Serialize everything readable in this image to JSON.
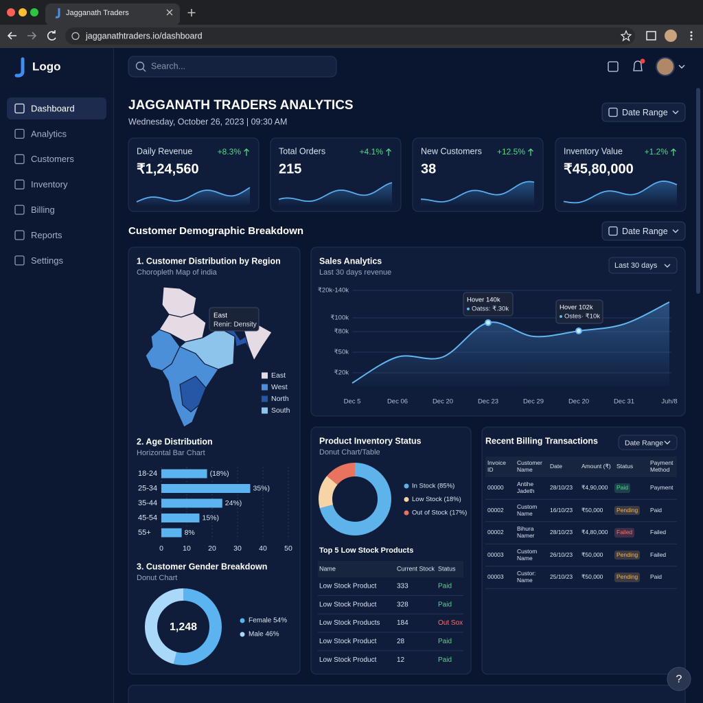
{
  "browser": {
    "tab_title": "Jagganath Traders",
    "url": "jagganathtraders.io/dashboard"
  },
  "sidebar": {
    "logo": "Logo",
    "nav": [
      "Dashboard",
      "Analytics",
      "Customers",
      "Inventory",
      "Billing",
      "Reports",
      "Settings"
    ]
  },
  "topbar": {
    "search_placeholder": "Search..."
  },
  "header": {
    "title": "JAGGANATH TRADERS ANALYTICS",
    "datetime": "Wednesday, October 26, 2023 | 09:30 AM",
    "date_range": "Date Range"
  },
  "kpis": [
    {
      "label": "Daily Revenue",
      "change": "+8.3%",
      "value": "₹1,24,560"
    },
    {
      "label": "Total Orders",
      "change": "+4.1%",
      "value": "215"
    },
    {
      "label": "New Customers",
      "change": "+12.5%",
      "value": "38"
    },
    {
      "label": "Inventory Value",
      "change": "+1.2%",
      "value": "₹45,80,000"
    }
  ],
  "section": {
    "title": "Customer Demographic Breakdown",
    "date_range": "Date Range"
  },
  "region_map": {
    "title": "1. Customer Distribution by Region",
    "subtitle": "Choropleth Map of india",
    "tooltip": [
      "East",
      "Renir: Density"
    ],
    "legend": [
      {
        "name": "East",
        "color": "#e4dbe4"
      },
      {
        "name": "West",
        "color": "#4a8fd8"
      },
      {
        "name": "North",
        "color": "#2656a6"
      },
      {
        "name": "South",
        "color": "#8cc4ec"
      }
    ]
  },
  "chart_data": [
    {
      "type": "line",
      "title": "Sales Analytics",
      "subtitle": "Last 30 days revenue",
      "control": "Last 30 days",
      "categories": [
        "Dec 5",
        "Dec 06",
        "Dec 20",
        "Dec 23",
        "Dec 29",
        "Dec 20",
        "Dec 31",
        "Juh/8"
      ],
      "values": [
        5000,
        43000,
        43000,
        93000,
        73000,
        81000,
        91000,
        123000
      ],
      "color": "#63b6f0",
      "ylim": [
        0,
        150000
      ],
      "yticks": [
        {
          "value": 20000,
          "label": "₹20k"
        },
        {
          "value": 50000,
          "label": "₹50k"
        },
        {
          "value": 80000,
          "label": "₹80k"
        },
        {
          "value": 100000,
          "label": "₹100k"
        },
        {
          "value": 140000,
          "label": "₹20k-140k"
        }
      ],
      "grid": true,
      "annotations": [
        [
          "Hover 140k",
          "Oatss: ₹.30k"
        ],
        [
          "Hover 102k",
          "Ostes· ₹10k"
        ]
      ]
    },
    {
      "type": "bar",
      "orientation": "horizontal",
      "title": "2. Age Distribution",
      "subtitle": "Horizontal Bar Chart",
      "categories": [
        "18-24",
        "25-34",
        "35-44",
        "45-54",
        "55+"
      ],
      "values": [
        18,
        35,
        24,
        15,
        8
      ],
      "value_labels": [
        "(18%)",
        "35%)",
        "24%)",
        "15%)",
        "8%"
      ],
      "color": "#5bb3f0",
      "xlim": [
        0,
        50
      ],
      "xticks": [
        0,
        10,
        20,
        30,
        40,
        50
      ],
      "grid": true
    },
    {
      "type": "pie",
      "donut": true,
      "title": "3. Customer Gender Breakdown",
      "subtitle": "Donut Chart",
      "center_label": "1,248",
      "legend_labels": [
        "Female 54%",
        "Male 46%"
      ],
      "values": [
        54,
        46
      ],
      "colors": [
        "#5bb3f0",
        "#a9d8f8"
      ]
    },
    {
      "type": "pie",
      "donut": true,
      "title": "Product Inventory Status",
      "subtitle": "Donut Chart/Table",
      "legend_labels": [
        "In Stock (85%)",
        "Low Stock (18%)",
        "Out of Stock (17%)"
      ],
      "values": [
        85,
        18,
        17
      ],
      "colors": [
        "#5db3ea",
        "#f6d4a6",
        "#e8735f"
      ]
    }
  ],
  "inventory_table": {
    "title": "Top 5 Low Stock Products",
    "columns": [
      "Name",
      "Current Stock",
      "Status"
    ],
    "rows": [
      {
        "cells": [
          "Low Stock Product",
          333,
          "Paid"
        ],
        "status_color": "#4ade80"
      },
      {
        "cells": [
          "Low Stock Product",
          328,
          "Paid"
        ],
        "status_color": "#4ade80"
      },
      {
        "cells": [
          "Low Stock Products",
          184,
          "Out Sox"
        ],
        "status_color": "#f87171"
      },
      {
        "cells": [
          "Low Stock Product",
          28,
          "Paid"
        ],
        "status_color": "#4ade80"
      },
      {
        "cells": [
          "Low Stock Product",
          12,
          "Paid"
        ],
        "status_color": "#4ade80"
      }
    ]
  },
  "billing": {
    "title": "Recent Billing Transactions",
    "date_range": "Date Range",
    "columns": [
      "Invoice ID",
      "Customer Name",
      "Date",
      "Amount (₹)",
      "Status",
      "Payment Method"
    ],
    "rows": [
      {
        "cells": [
          "00000",
          "Antihe Jadeth",
          "28/10/23",
          "₹4,90,000",
          "Paid",
          "Payment"
        ],
        "status_color": "#4ade80"
      },
      {
        "cells": [
          "00002",
          "Custom Name",
          "16/10/23",
          "₹50,000",
          "Pending",
          "Paid"
        ],
        "status_color": "#f2b35b"
      },
      {
        "cells": [
          "00002",
          "Bihura Namer",
          "28/10/23",
          "₹4,80,000",
          "Failed",
          "Failed"
        ],
        "status_color": "#f87171"
      },
      {
        "cells": [
          "00003",
          "Custom Name",
          "26/10/23",
          "₹50,000",
          "Pending",
          "Failed"
        ],
        "status_color": "#f2b35b"
      },
      {
        "cells": [
          "00003",
          "Custor: Name",
          "25/10/23",
          "₹50,000",
          "Pending",
          "Paid"
        ],
        "status_color": "#f2b35b"
      }
    ]
  },
  "help": "?"
}
